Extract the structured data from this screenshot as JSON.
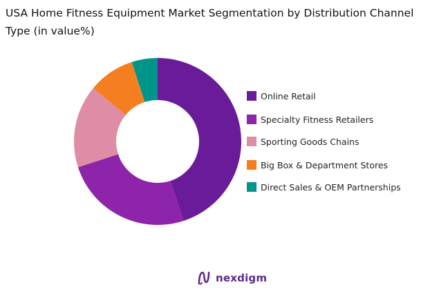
{
  "chart_data": {
    "type": "pie",
    "title": "USA Home Fitness Equipment Market Segmentation by Distribution Channel Type (in value%)",
    "categories": [
      "Online Retail",
      "Specialty Fitness Retailers",
      "Sporting Goods Chains",
      "Big Box & Department Stores",
      "Direct Sales & OEM Partnerships"
    ],
    "values": [
      45,
      25,
      16,
      9,
      5
    ],
    "colors": [
      "#6a1b9a",
      "#8e24aa",
      "#df8da4",
      "#f57f20",
      "#00958a"
    ],
    "donut": true,
    "legend_position": "right"
  },
  "brand": {
    "name": "nexdigm",
    "color": "#5b2a86"
  }
}
